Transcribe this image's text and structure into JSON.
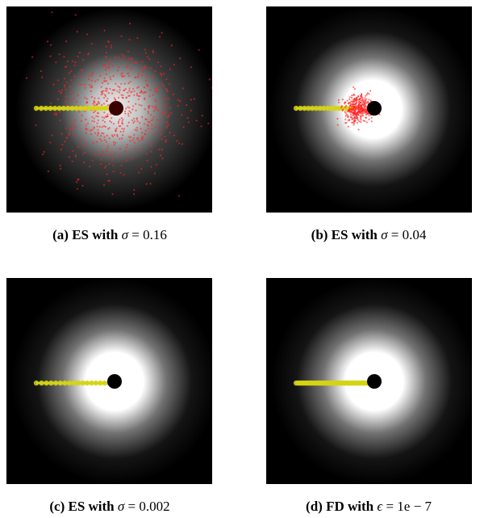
{
  "panels": [
    {
      "id": "a",
      "caption_bold": "(a) ES with",
      "caption_symbol": "σ",
      "caption_rest": "= 0.16",
      "glow": "radial",
      "samples": "wide",
      "trajectory": "dotted"
    },
    {
      "id": "b",
      "caption_bold": "(b) ES with",
      "caption_symbol": "σ",
      "caption_rest": "= 0.04",
      "glow": "ring",
      "samples": "tight",
      "trajectory": "dotted"
    },
    {
      "id": "c",
      "caption_bold": "(c) ES with",
      "caption_symbol": "σ",
      "caption_rest": "= 0.002",
      "glow": "ring",
      "samples": "none",
      "trajectory": "dotted"
    },
    {
      "id": "d",
      "caption_bold": "(d) FD with",
      "caption_symbol": "ϵ",
      "caption_rest": "= 1e − 7",
      "glow": "ring",
      "samples": "none",
      "trajectory": "dense"
    }
  ],
  "colors": {
    "background": "#000000",
    "glow": "#ffffff",
    "trajectory": "#d4d414",
    "samples": "#ff2020",
    "target": "#000000"
  }
}
